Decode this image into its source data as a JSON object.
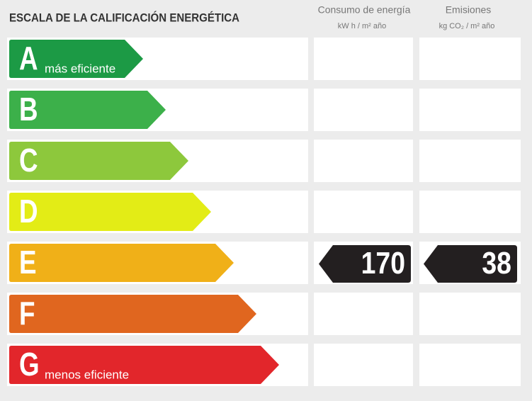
{
  "title": "ESCALA DE LA CALIFICACIÓN ENERGÉTICA",
  "columns": [
    {
      "label": "Consumo de energía",
      "unit": "kW h / m² año"
    },
    {
      "label": "Emisiones",
      "unit": "kg CO₂ / m² año"
    }
  ],
  "ratings": [
    {
      "letter": "A",
      "note": "más eficiente",
      "color": "#1c9a45"
    },
    {
      "letter": "B",
      "color": "#3cb04a"
    },
    {
      "letter": "C",
      "color": "#8dc83c"
    },
    {
      "letter": "D",
      "color": "#e3ec16"
    },
    {
      "letter": "E",
      "color": "#f0b018",
      "consumption": 170,
      "emissions": 38
    },
    {
      "letter": "F",
      "color": "#e0661f"
    },
    {
      "letter": "G",
      "note": "menos eficiente",
      "color": "#e2262b"
    }
  ]
}
